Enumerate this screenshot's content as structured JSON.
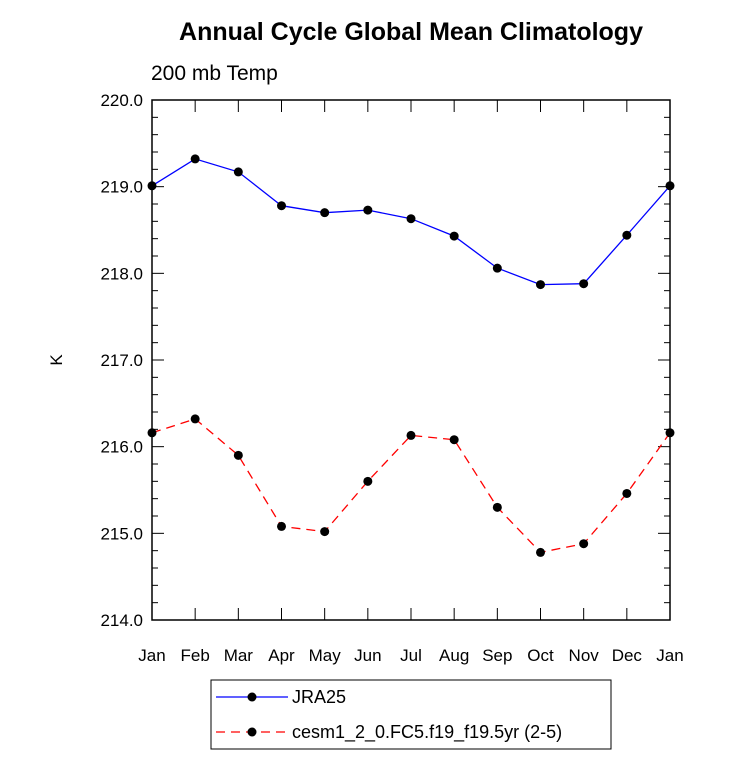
{
  "chart_data": {
    "type": "line",
    "title": "Annual Cycle Global Mean Climatology",
    "subtitle": "200 mb Temp",
    "xlabel": "",
    "ylabel": "K",
    "categories": [
      "Jan",
      "Feb",
      "Mar",
      "Apr",
      "May",
      "Jun",
      "Jul",
      "Aug",
      "Sep",
      "Oct",
      "Nov",
      "Dec",
      "Jan"
    ],
    "ylim": [
      214.0,
      220.0
    ],
    "yticks": [
      "214.0",
      "215.0",
      "216.0",
      "217.0",
      "218.0",
      "219.0",
      "220.0"
    ],
    "grid": false,
    "legend_position": "bottom",
    "series": [
      {
        "name": "JRA25",
        "color": "#0000ff",
        "dash": "solid",
        "marker": "circle",
        "values": [
          219.01,
          219.32,
          219.17,
          218.78,
          218.7,
          218.73,
          218.63,
          218.43,
          218.06,
          217.87,
          217.88,
          218.44,
          219.01
        ]
      },
      {
        "name": "cesm1_2_0.FC5.f19_f19.5yr (2-5)",
        "color": "#ff0000",
        "dash": "dashed",
        "marker": "circle",
        "values": [
          216.16,
          216.32,
          215.9,
          215.08,
          215.02,
          215.6,
          216.13,
          216.08,
          215.3,
          214.78,
          214.88,
          215.46,
          216.16
        ]
      }
    ]
  }
}
